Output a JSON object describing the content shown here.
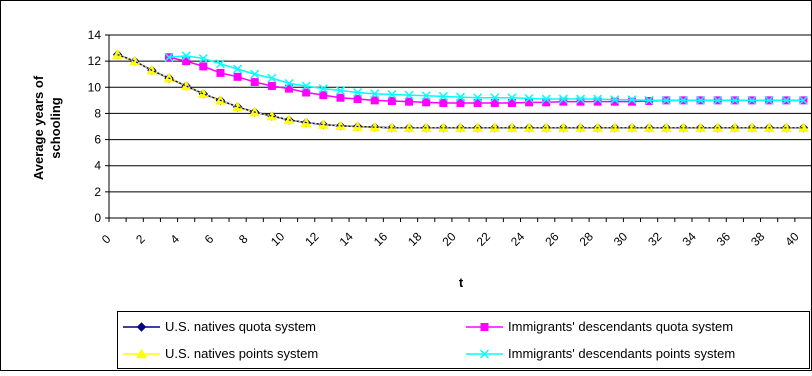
{
  "chart_data": {
    "type": "line",
    "title": "",
    "xlabel": "t",
    "ylabel": "Average years of schooling",
    "ylabel_lines": [
      "Average years of",
      "schooling"
    ],
    "xlim": [
      0,
      41
    ],
    "ylim": [
      0,
      14
    ],
    "x_ticks": [
      0,
      2,
      4,
      6,
      8,
      10,
      12,
      14,
      16,
      18,
      20,
      22,
      24,
      26,
      28,
      30,
      32,
      34,
      36,
      38,
      40
    ],
    "y_ticks": [
      0,
      2,
      4,
      6,
      8,
      10,
      12,
      14
    ],
    "grid": "horizontal",
    "legend_position": "bottom",
    "series": [
      {
        "name": "U.S. natives quota system",
        "color": "#000080",
        "marker": "diamond",
        "x": [
          0.5,
          1.5,
          2.5,
          3.5,
          4.5,
          5.5,
          6.5,
          7.5,
          8.5,
          9.5,
          10.5,
          11.5,
          12.5,
          13.5,
          14.5,
          15.5,
          16.5,
          17.5,
          18.5,
          19.5,
          20.5,
          21.5,
          22.5,
          23.5,
          24.5,
          25.5,
          26.5,
          27.5,
          28.5,
          29.5,
          30.5,
          31.5,
          32.5,
          33.5,
          34.5,
          35.5,
          36.5,
          37.5,
          38.5,
          39.5,
          40.5
        ],
        "values": [
          12.5,
          12.0,
          11.3,
          10.7,
          10.1,
          9.5,
          9.0,
          8.5,
          8.1,
          7.8,
          7.5,
          7.3,
          7.15,
          7.05,
          7.0,
          6.95,
          6.9,
          6.9,
          6.9,
          6.9,
          6.9,
          6.9,
          6.9,
          6.9,
          6.9,
          6.9,
          6.9,
          6.9,
          6.9,
          6.9,
          6.9,
          6.9,
          6.9,
          6.9,
          6.9,
          6.9,
          6.9,
          6.9,
          6.9,
          6.9,
          6.9
        ]
      },
      {
        "name": "U.S. natives points system",
        "color": "#ffff00",
        "marker": "triangle",
        "x": [
          0.5,
          1.5,
          2.5,
          3.5,
          4.5,
          5.5,
          6.5,
          7.5,
          8.5,
          9.5,
          10.5,
          11.5,
          12.5,
          13.5,
          14.5,
          15.5,
          16.5,
          17.5,
          18.5,
          19.5,
          20.5,
          21.5,
          22.5,
          23.5,
          24.5,
          25.5,
          26.5,
          27.5,
          28.5,
          29.5,
          30.5,
          31.5,
          32.5,
          33.5,
          34.5,
          35.5,
          36.5,
          37.5,
          38.5,
          39.5,
          40.5
        ],
        "values": [
          12.5,
          12.0,
          11.3,
          10.7,
          10.1,
          9.5,
          9.0,
          8.5,
          8.1,
          7.8,
          7.5,
          7.3,
          7.15,
          7.05,
          7.0,
          6.95,
          6.9,
          6.9,
          6.9,
          6.9,
          6.9,
          6.9,
          6.9,
          6.9,
          6.9,
          6.9,
          6.9,
          6.9,
          6.9,
          6.9,
          6.9,
          6.9,
          6.9,
          6.9,
          6.9,
          6.9,
          6.9,
          6.9,
          6.9,
          6.9,
          6.9
        ]
      },
      {
        "name": "Immigrants' descendants quota system",
        "color": "#ff00ff",
        "marker": "square",
        "x": [
          3.5,
          4.5,
          5.5,
          6.5,
          7.5,
          8.5,
          9.5,
          10.5,
          11.5,
          12.5,
          13.5,
          14.5,
          15.5,
          16.5,
          17.5,
          18.5,
          19.5,
          20.5,
          21.5,
          22.5,
          23.5,
          24.5,
          25.5,
          26.5,
          27.5,
          28.5,
          29.5,
          30.5,
          31.5,
          32.5,
          33.5,
          34.5,
          35.5,
          36.5,
          37.5,
          38.5,
          39.5,
          40.5
        ],
        "values": [
          12.3,
          12.0,
          11.6,
          11.1,
          10.8,
          10.4,
          10.1,
          9.9,
          9.6,
          9.4,
          9.2,
          9.1,
          9.0,
          8.95,
          8.9,
          8.85,
          8.8,
          8.8,
          8.8,
          8.8,
          8.8,
          8.85,
          8.85,
          8.9,
          8.9,
          8.9,
          8.9,
          8.9,
          8.95,
          9.0,
          9.0,
          9.0,
          9.0,
          9.0,
          9.0,
          9.0,
          9.0,
          9.0
        ]
      },
      {
        "name": "Immigrants' descendants points system",
        "color": "#00ffff",
        "marker": "x",
        "x": [
          3.5,
          4.5,
          5.5,
          6.5,
          7.5,
          8.5,
          9.5,
          10.5,
          11.5,
          12.5,
          13.5,
          14.5,
          15.5,
          16.5,
          17.5,
          18.5,
          19.5,
          20.5,
          21.5,
          22.5,
          23.5,
          24.5,
          25.5,
          26.5,
          27.5,
          28.5,
          29.5,
          30.5,
          31.5,
          32.5,
          33.5,
          34.5,
          35.5,
          36.5,
          37.5,
          38.5,
          39.5,
          40.5
        ],
        "values": [
          12.3,
          12.4,
          12.2,
          11.8,
          11.4,
          11.0,
          10.7,
          10.3,
          10.1,
          9.9,
          9.75,
          9.6,
          9.5,
          9.45,
          9.4,
          9.35,
          9.3,
          9.25,
          9.2,
          9.2,
          9.2,
          9.15,
          9.1,
          9.1,
          9.1,
          9.1,
          9.05,
          9.05,
          9.0,
          9.0,
          9.0,
          9.0,
          9.0,
          9.0,
          9.0,
          9.0,
          9.0,
          9.0
        ]
      }
    ],
    "legend": [
      "U.S. natives quota system",
      "Immigrants' descendants quota system",
      "U.S. natives points system",
      "Immigrants' descendants points system"
    ]
  }
}
